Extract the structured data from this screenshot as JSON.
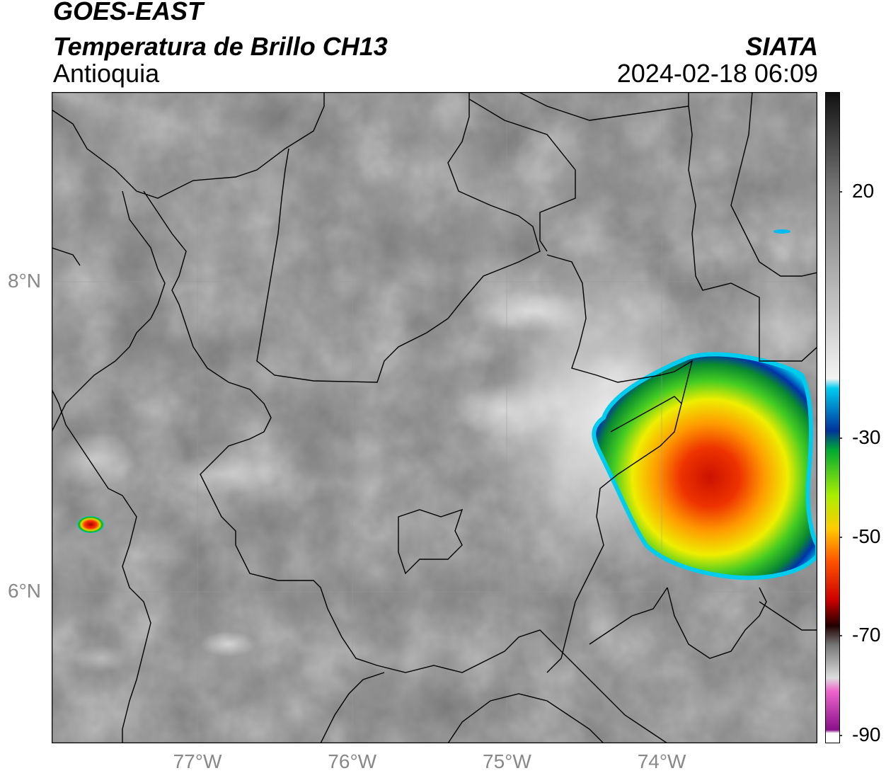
{
  "header": {
    "line1": "GOES-EAST",
    "line2": "Temperatura de Brillo CH13",
    "line3": "Antioquia",
    "org": "SIATA",
    "timestamp": "2024-02-18 06:09"
  },
  "map": {
    "lat_labels": [
      {
        "value": 8,
        "text": "8°N"
      },
      {
        "value": 6,
        "text": "6°N"
      }
    ],
    "lon_labels": [
      {
        "value": -77,
        "text": "77°W"
      },
      {
        "value": -76,
        "text": "76°W"
      },
      {
        "value": -75,
        "text": "75°W"
      },
      {
        "value": -74,
        "text": "74°W"
      }
    ],
    "colors": {
      "background_gray": "#777777",
      "boundary": "#000000",
      "cloud_cold_core": "#cc1100",
      "cloud_orange": "#ff9900",
      "cloud_yellow": "#eeee00",
      "cloud_green": "#22cc00",
      "cloud_blue": "#0033aa",
      "cloud_cyan": "#00ccee"
    }
  },
  "colorbar": {
    "ticks": [
      {
        "value": 20,
        "text": "20"
      },
      {
        "value": -30,
        "text": "-30"
      },
      {
        "value": -50,
        "text": "-50"
      },
      {
        "value": -70,
        "text": "-70"
      },
      {
        "value": -90,
        "text": "-90"
      }
    ]
  }
}
